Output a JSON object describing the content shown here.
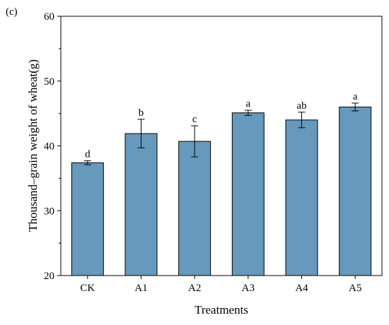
{
  "panel_label": "(c)",
  "chart_data": {
    "type": "bar",
    "categories": [
      "CK",
      "A1",
      "A2",
      "A3",
      "A4",
      "A5"
    ],
    "values": [
      37.4,
      41.9,
      40.7,
      45.1,
      44.0,
      46.0
    ],
    "errors": [
      0.3,
      2.2,
      2.4,
      0.4,
      1.2,
      0.6
    ],
    "significance_labels": [
      "d",
      "b",
      "c",
      "a",
      "ab",
      "a"
    ],
    "xlabel": "Treatments",
    "ylabel": "Thousand–grain weight of wheat(g)",
    "ylim": [
      20,
      60
    ],
    "yticks": [
      20,
      30,
      40,
      50,
      60
    ],
    "grid": false,
    "legend": "none",
    "bar_color": "#6699bb"
  }
}
